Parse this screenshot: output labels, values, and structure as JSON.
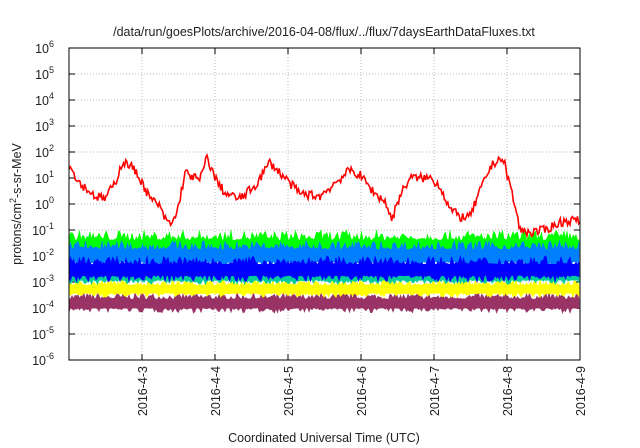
{
  "chart_data": {
    "type": "line",
    "title": "/data/run/goesPlots/archive/2016-04-08/flux/../flux/7daysEarthDataFluxes.txt",
    "xlabel": "Coordinated Universal Time (UTC)",
    "ylabel": "protons/cm²-s-sr-MeV",
    "ylabel_base": "protons/cm",
    "ylabel_sup": "2",
    "ylabel_rest": "-s-sr-MeV",
    "x_unit": "days since 2016-04-02 00:00 UTC",
    "xlim": [
      0,
      7
    ],
    "y_scale": "log10",
    "ylim_log10": [
      -6,
      6
    ],
    "grid": true,
    "x_ticks": [
      {
        "value": 1,
        "label": "2016-4-3"
      },
      {
        "value": 2,
        "label": "2016-4-4"
      },
      {
        "value": 3,
        "label": "2016-4-5"
      },
      {
        "value": 4,
        "label": "2016-4-6"
      },
      {
        "value": 5,
        "label": "2016-4-7"
      },
      {
        "value": 6,
        "label": "2016-4-8"
      },
      {
        "value": 7,
        "label": "2016-4-9"
      }
    ],
    "y_ticks": [
      {
        "exp": 6,
        "base": "10",
        "sup": "6"
      },
      {
        "exp": 5,
        "base": "10",
        "sup": "5"
      },
      {
        "exp": 4,
        "base": "10",
        "sup": "4"
      },
      {
        "exp": 3,
        "base": "10",
        "sup": "3"
      },
      {
        "exp": 2,
        "base": "10",
        "sup": "2"
      },
      {
        "exp": 1,
        "base": "10",
        "sup": "1"
      },
      {
        "exp": 0,
        "base": "10",
        "sup": "0"
      },
      {
        "exp": -1,
        "base": "10",
        "sup": "-1"
      },
      {
        "exp": -2,
        "base": "10",
        "sup": "-2"
      },
      {
        "exp": -3,
        "base": "10",
        "sup": "-3"
      },
      {
        "exp": -4,
        "base": "10",
        "sup": "-4"
      },
      {
        "exp": -5,
        "base": "10",
        "sup": "-5"
      },
      {
        "exp": -6,
        "base": "10",
        "sup": "-6"
      }
    ],
    "series": [
      {
        "name": "channel-maroon",
        "color": "#993366",
        "band_log10": [
          -4.2,
          -3.4
        ]
      },
      {
        "name": "channel-yellow",
        "color": "#ffff00",
        "band_log10": [
          -3.6,
          -2.9
        ]
      },
      {
        "name": "channel-teal",
        "color": "#00cc99",
        "band_log10": [
          -3.1,
          -2.4
        ]
      },
      {
        "name": "channel-green",
        "color": "#00ff00",
        "band_log10": [
          -2.2,
          -1.0
        ]
      },
      {
        "name": "channel-lightblue",
        "color": "#0080ff",
        "band_log10": [
          -2.5,
          -1.4
        ]
      },
      {
        "name": "channel-blue",
        "color": "#0000ff",
        "band_log10": [
          -3.0,
          -2.0
        ]
      },
      {
        "name": "channel-red",
        "color": "#ff0000",
        "x": [
          0,
          0.15,
          0.36,
          0.49,
          0.63,
          0.73,
          0.84,
          0.97,
          1.11,
          1.22,
          1.32,
          1.41,
          1.49,
          1.59,
          1.73,
          1.79,
          1.89,
          2.0,
          2.14,
          2.34,
          2.55,
          2.75,
          2.96,
          3.16,
          3.44,
          3.64,
          3.85,
          3.99,
          4.19,
          4.33,
          4.42,
          4.53,
          4.67,
          4.95,
          5.08,
          5.22,
          5.36,
          5.49,
          5.63,
          5.77,
          5.9,
          5.97,
          6.07,
          6.18,
          6.32,
          6.52,
          6.73,
          6.93,
          7.0
        ],
        "log10_values": [
          1.5,
          0.8,
          0.3,
          0.2,
          0.8,
          1.6,
          1.5,
          1.0,
          0.2,
          0.0,
          -0.6,
          -0.8,
          -0.2,
          1.2,
          1.0,
          0.9,
          1.8,
          1.0,
          0.4,
          0.2,
          0.7,
          1.6,
          1.0,
          0.4,
          0.3,
          0.8,
          1.3,
          1.1,
          0.4,
          0.1,
          -0.6,
          0.3,
          1.0,
          1.0,
          0.7,
          -0.2,
          -0.5,
          -0.5,
          0.5,
          1.4,
          1.8,
          1.5,
          0.4,
          -1.0,
          -1.1,
          -1.0,
          -0.7,
          -0.6,
          -0.7
        ]
      }
    ]
  }
}
